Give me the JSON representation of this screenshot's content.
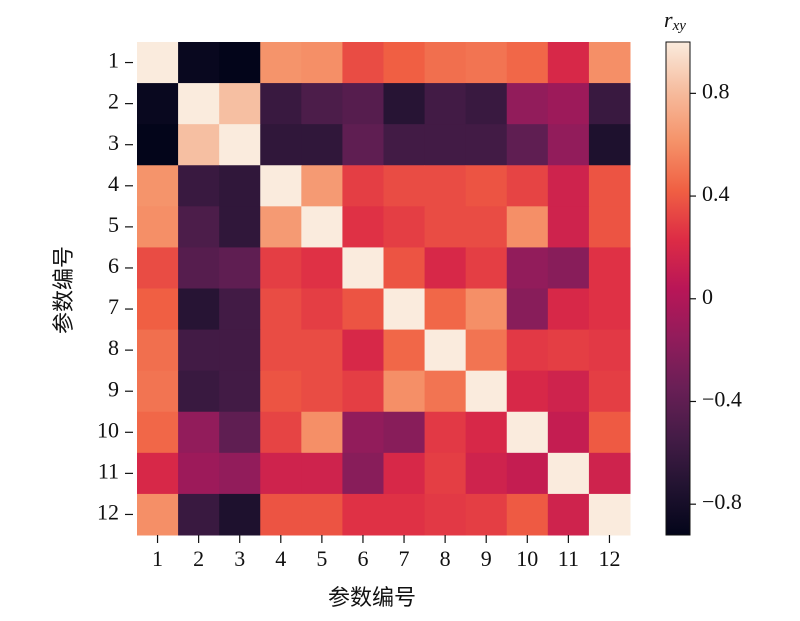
{
  "chart_data": {
    "type": "heatmap",
    "categories": [
      "1",
      "2",
      "3",
      "4",
      "5",
      "6",
      "7",
      "8",
      "9",
      "10",
      "11",
      "12"
    ],
    "y_categories": [
      "1",
      "2",
      "3",
      "4",
      "5",
      "6",
      "7",
      "8",
      "9",
      "10",
      "11",
      "12"
    ],
    "x_label": "参数编号",
    "y_label": "参数编号",
    "colorbar_label": "r",
    "colorbar_label_sub": "xy",
    "values": [
      [
        1,
        -0.88,
        -0.92,
        0.62,
        0.6,
        0.35,
        0.42,
        0.48,
        0.5,
        0.45,
        0.2,
        0.6
      ],
      [
        -0.88,
        1,
        0.82,
        -0.6,
        -0.5,
        -0.45,
        -0.7,
        -0.55,
        -0.6,
        -0.15,
        -0.1,
        -0.6
      ],
      [
        -0.92,
        0.82,
        1,
        -0.65,
        -0.65,
        -0.4,
        -0.55,
        -0.55,
        -0.55,
        -0.4,
        -0.15,
        -0.75
      ],
      [
        0.62,
        -0.6,
        -0.65,
        1,
        0.65,
        0.3,
        0.35,
        0.35,
        0.38,
        0.32,
        0.15,
        0.38
      ],
      [
        0.6,
        -0.5,
        -0.65,
        0.65,
        1,
        0.25,
        0.3,
        0.35,
        0.35,
        0.6,
        0.15,
        0.38
      ],
      [
        0.35,
        -0.45,
        -0.4,
        0.3,
        0.25,
        1,
        0.38,
        0.2,
        0.3,
        -0.15,
        -0.2,
        0.25
      ],
      [
        0.42,
        -0.7,
        -0.55,
        0.35,
        0.3,
        0.38,
        1,
        0.45,
        0.6,
        -0.2,
        0.2,
        0.25
      ],
      [
        0.48,
        -0.55,
        -0.55,
        0.35,
        0.35,
        0.2,
        0.45,
        1,
        0.5,
        0.28,
        0.3,
        0.28
      ],
      [
        0.5,
        -0.6,
        -0.55,
        0.38,
        0.35,
        0.3,
        0.6,
        0.5,
        1,
        0.2,
        0.15,
        0.3
      ],
      [
        0.45,
        -0.15,
        -0.4,
        0.32,
        0.6,
        -0.15,
        -0.2,
        0.28,
        0.2,
        1,
        0.1,
        0.4
      ],
      [
        0.2,
        -0.1,
        -0.15,
        0.15,
        0.15,
        -0.2,
        0.2,
        0.3,
        0.15,
        0.1,
        1,
        0.15
      ],
      [
        0.6,
        -0.6,
        -0.75,
        0.38,
        0.38,
        0.25,
        0.25,
        0.28,
        0.3,
        0.4,
        0.15,
        1
      ]
    ],
    "clim": [
      -0.92,
      1.0
    ],
    "cticks": [
      {
        "value": -0.8,
        "label": "−0.8"
      },
      {
        "value": -0.4,
        "label": "−0.4"
      },
      0,
      0.4,
      0.8
    ],
    "colormap": [
      "#03051a",
      "#221331",
      "#451c47",
      "#6a1f56",
      "#921c5b",
      "#b91657",
      "#dd2c45",
      "#f06043",
      "#f5936a",
      "#f6bc9e",
      "#faebdd"
    ]
  }
}
